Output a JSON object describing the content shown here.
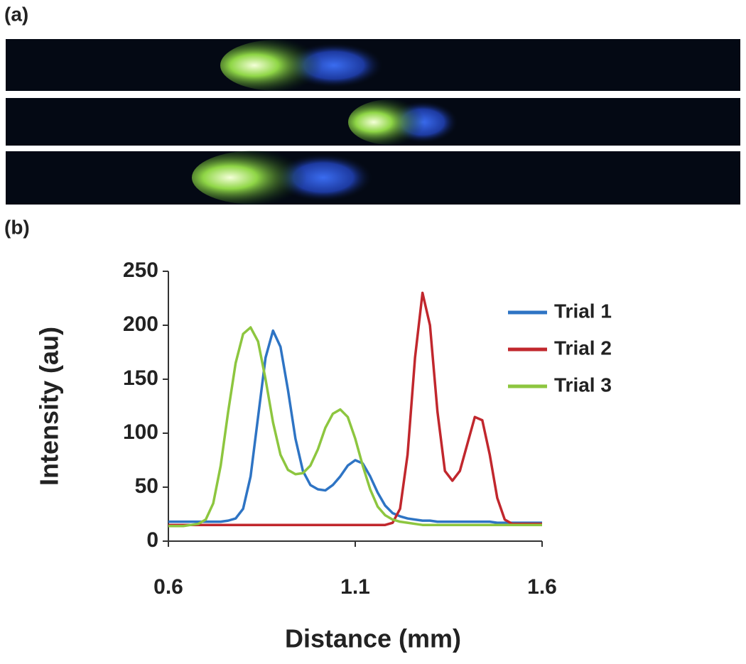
{
  "panel_labels": [
    "(a)",
    "(b)"
  ],
  "chart_data": {
    "type": "line",
    "x_label": "Distance (mm)",
    "y_label": "Intensity (au)",
    "xlim": [
      0.6,
      1.6
    ],
    "ylim": [
      0,
      250
    ],
    "xticks": [
      0.6,
      1.1,
      1.6
    ],
    "yticks": [
      0,
      50,
      100,
      150,
      200,
      250
    ],
    "legend": "upper right",
    "x": [
      0.6,
      0.62,
      0.64,
      0.66,
      0.68,
      0.7,
      0.72,
      0.74,
      0.76,
      0.78,
      0.8,
      0.82,
      0.84,
      0.86,
      0.88,
      0.9,
      0.92,
      0.94,
      0.96,
      0.98,
      1.0,
      1.02,
      1.04,
      1.06,
      1.08,
      1.1,
      1.12,
      1.14,
      1.16,
      1.18,
      1.2,
      1.22,
      1.24,
      1.26,
      1.28,
      1.3,
      1.32,
      1.34,
      1.36,
      1.38,
      1.4,
      1.42,
      1.44,
      1.46,
      1.48,
      1.5,
      1.52,
      1.54,
      1.56,
      1.58,
      1.6
    ],
    "series": [
      {
        "name": "Trial 1",
        "color": "#2e74c4",
        "values": [
          18,
          18,
          18,
          18,
          18,
          18,
          18,
          18,
          19,
          21,
          30,
          60,
          115,
          170,
          195,
          180,
          140,
          95,
          65,
          52,
          48,
          47,
          52,
          60,
          70,
          75,
          72,
          60,
          45,
          33,
          26,
          23,
          21,
          20,
          19,
          19,
          18,
          18,
          18,
          18,
          18,
          18,
          18,
          18,
          17,
          17,
          17,
          17,
          17,
          17,
          17
        ]
      },
      {
        "name": "Trial 2",
        "color": "#c1272d",
        "values": [
          15,
          15,
          15,
          15,
          15,
          15,
          15,
          15,
          15,
          15,
          15,
          15,
          15,
          15,
          15,
          15,
          15,
          15,
          15,
          15,
          15,
          15,
          15,
          15,
          15,
          15,
          15,
          15,
          15,
          15,
          17,
          30,
          80,
          170,
          230,
          200,
          120,
          65,
          56,
          65,
          90,
          115,
          112,
          80,
          40,
          20,
          16,
          16,
          16,
          16,
          16
        ]
      },
      {
        "name": "Trial 3",
        "color": "#8dc63f",
        "values": [
          14,
          14,
          14,
          15,
          16,
          20,
          35,
          70,
          120,
          165,
          192,
          198,
          185,
          150,
          110,
          80,
          66,
          62,
          63,
          70,
          85,
          105,
          118,
          122,
          115,
          95,
          70,
          48,
          32,
          24,
          20,
          18,
          17,
          16,
          15,
          15,
          15,
          15,
          15,
          15,
          15,
          15,
          15,
          15,
          15,
          15,
          15,
          15,
          15,
          15,
          15
        ]
      }
    ]
  }
}
